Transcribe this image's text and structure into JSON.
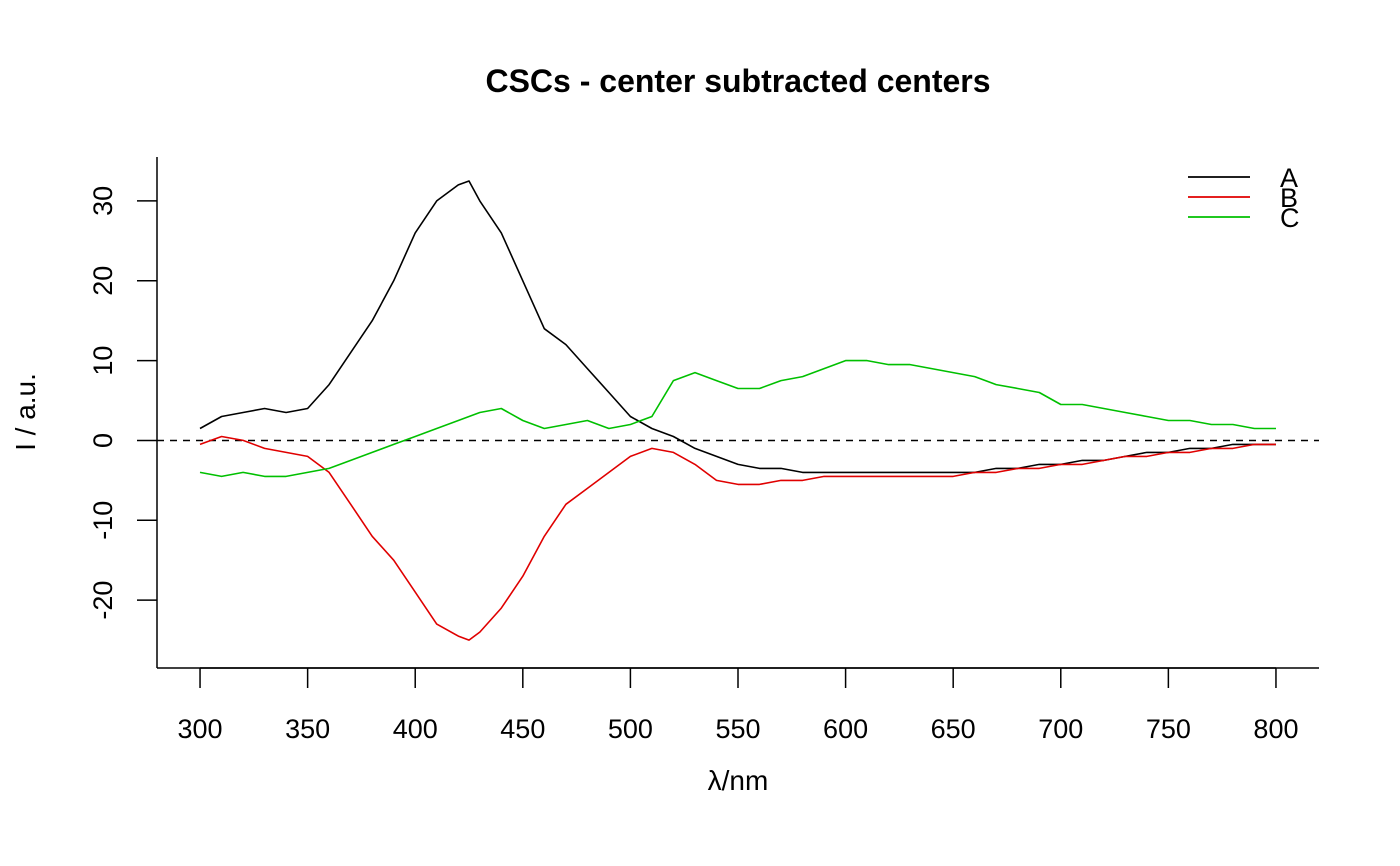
{
  "chart_data": {
    "type": "line",
    "title": "CSCs - center subtracted centers",
    "xlabel": "λ/nm",
    "ylabel": "I / a.u.",
    "xlim": [
      280,
      820
    ],
    "ylim": [
      -28.5,
      35.5
    ],
    "x_ticks": [
      300,
      350,
      400,
      450,
      500,
      550,
      600,
      650,
      700,
      750,
      800
    ],
    "y_ticks": [
      -20,
      -10,
      0,
      10,
      20,
      30
    ],
    "reference_line": {
      "y": 0,
      "style": "dashed"
    },
    "legend": {
      "placement": "top-right",
      "entries": [
        "A",
        "B",
        "C"
      ]
    },
    "series": [
      {
        "name": "A",
        "color": "#000000",
        "x": [
          300,
          310,
          320,
          330,
          340,
          350,
          360,
          370,
          380,
          390,
          400,
          410,
          420,
          425,
          430,
          440,
          450,
          460,
          470,
          480,
          490,
          500,
          510,
          520,
          530,
          540,
          550,
          560,
          570,
          580,
          590,
          600,
          610,
          620,
          630,
          640,
          650,
          660,
          670,
          680,
          690,
          700,
          710,
          720,
          730,
          740,
          750,
          760,
          770,
          780,
          790,
          800
        ],
        "y": [
          1.5,
          3,
          3.5,
          4,
          3.5,
          4,
          7,
          11,
          15,
          20,
          26,
          30,
          32,
          32.5,
          30,
          26,
          20,
          14,
          12,
          9,
          6,
          3,
          1.5,
          0.5,
          -1,
          -2,
          -3,
          -3.5,
          -3.5,
          -4,
          -4,
          -4,
          -4,
          -4,
          -4,
          -4,
          -4,
          -4,
          -3.5,
          -3.5,
          -3,
          -3,
          -2.5,
          -2.5,
          -2,
          -1.5,
          -1.5,
          -1,
          -1,
          -0.5,
          -0.5,
          -0.5
        ]
      },
      {
        "name": "B",
        "color": "#e00000",
        "x": [
          300,
          310,
          320,
          330,
          340,
          350,
          360,
          370,
          380,
          390,
          400,
          410,
          420,
          425,
          430,
          440,
          450,
          460,
          470,
          480,
          490,
          500,
          510,
          520,
          530,
          540,
          550,
          560,
          570,
          580,
          590,
          600,
          610,
          620,
          630,
          640,
          650,
          660,
          670,
          680,
          690,
          700,
          710,
          720,
          730,
          740,
          750,
          760,
          770,
          780,
          790,
          800
        ],
        "y": [
          -0.5,
          0.5,
          0,
          -1,
          -1.5,
          -2,
          -4,
          -8,
          -12,
          -15,
          -19,
          -23,
          -24.5,
          -25,
          -24,
          -21,
          -17,
          -12,
          -8,
          -6,
          -4,
          -2,
          -1,
          -1.5,
          -3,
          -5,
          -5.5,
          -5.5,
          -5,
          -5,
          -4.5,
          -4.5,
          -4.5,
          -4.5,
          -4.5,
          -4.5,
          -4.5,
          -4,
          -4,
          -3.5,
          -3.5,
          -3,
          -3,
          -2.5,
          -2,
          -2,
          -1.5,
          -1.5,
          -1,
          -1,
          -0.5,
          -0.5
        ]
      },
      {
        "name": "C",
        "color": "#00c000",
        "x": [
          300,
          310,
          320,
          330,
          340,
          350,
          360,
          370,
          380,
          390,
          400,
          410,
          420,
          430,
          440,
          450,
          460,
          470,
          480,
          490,
          500,
          510,
          520,
          530,
          540,
          550,
          560,
          570,
          580,
          590,
          600,
          610,
          620,
          630,
          640,
          650,
          660,
          670,
          680,
          690,
          700,
          710,
          720,
          730,
          740,
          750,
          760,
          770,
          780,
          790,
          800
        ],
        "y": [
          -4,
          -4.5,
          -4,
          -4.5,
          -4.5,
          -4,
          -3.5,
          -2.5,
          -1.5,
          -0.5,
          0.5,
          1.5,
          2.5,
          3.5,
          4,
          2.5,
          1.5,
          2,
          2.5,
          1.5,
          2,
          3,
          7.5,
          8.5,
          7.5,
          6.5,
          6.5,
          7.5,
          8,
          9,
          10,
          10,
          9.5,
          9.5,
          9,
          8.5,
          8,
          7,
          6.5,
          6,
          4.5,
          4.5,
          4,
          3.5,
          3,
          2.5,
          2.5,
          2,
          2,
          1.5,
          1.5
        ]
      }
    ]
  }
}
